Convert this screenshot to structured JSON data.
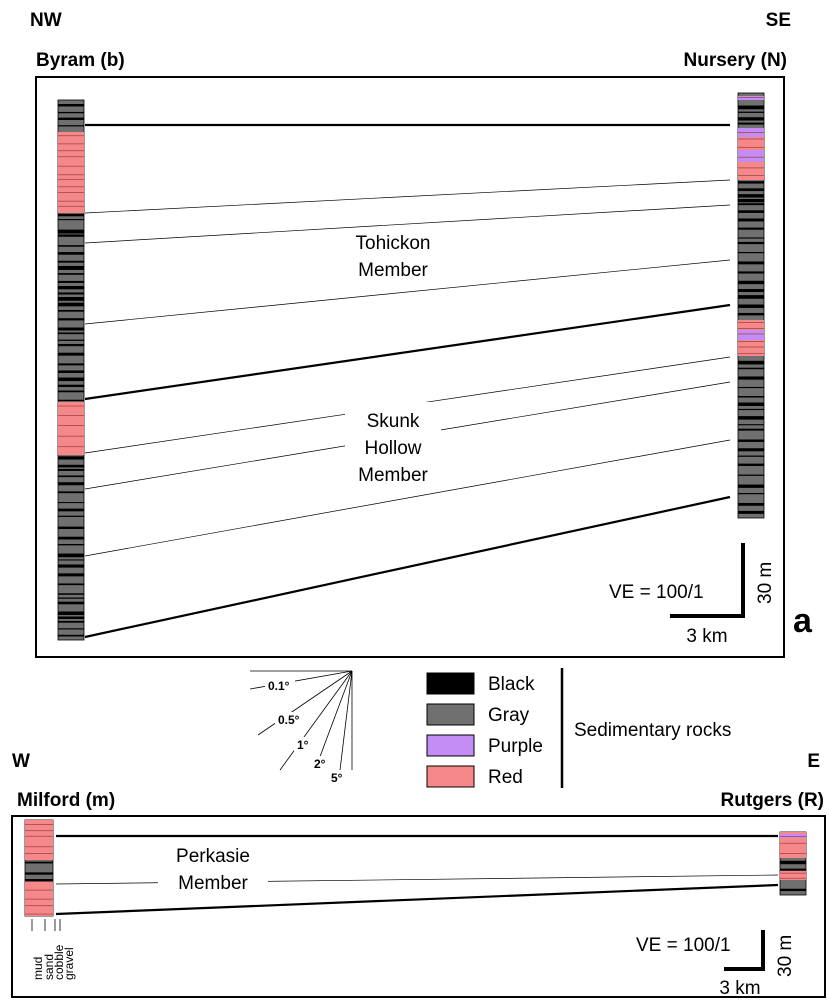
{
  "panel_a": {
    "dir_left": "NW",
    "dir_right": "SE",
    "section_left": "Byram (b)",
    "section_right": "Nursery (N)",
    "member_upper_l1": "Tohickon",
    "member_upper_l2": "Member",
    "member_lower_l1": "Skunk",
    "member_lower_l2": "Hollow",
    "member_lower_l3": "Member",
    "ve": "VE = 100/1",
    "vscale": "30 m",
    "hscale": "3 km",
    "panel_letter": "a"
  },
  "angle_fan": {
    "labels": [
      "0.1°",
      "0.5°",
      "1°",
      "2°",
      "5°"
    ]
  },
  "legend": {
    "items": [
      {
        "label": "Black",
        "color": "#000000"
      },
      {
        "label": "Gray",
        "color": "#707070"
      },
      {
        "label": "Purple",
        "color": "#c48cf5"
      },
      {
        "label": "Red",
        "color": "#f7888a"
      }
    ],
    "group_label": "Sedimentary rocks"
  },
  "panel_b": {
    "dir_left": "W",
    "dir_right": "E",
    "section_left": "Milford (m)",
    "section_right": "Rutgers (R)",
    "member_l1": "Perkasie",
    "member_l2": "Member",
    "grain_sizes": [
      "mud",
      "sand",
      "cobble",
      "gravel"
    ],
    "ve": "VE = 100/1",
    "vscale": "30 m",
    "hscale": "3 km"
  },
  "colors": {
    "black": "#000000",
    "gray": "#707070",
    "purple": "#c48cf5",
    "red": "#f7888a"
  }
}
